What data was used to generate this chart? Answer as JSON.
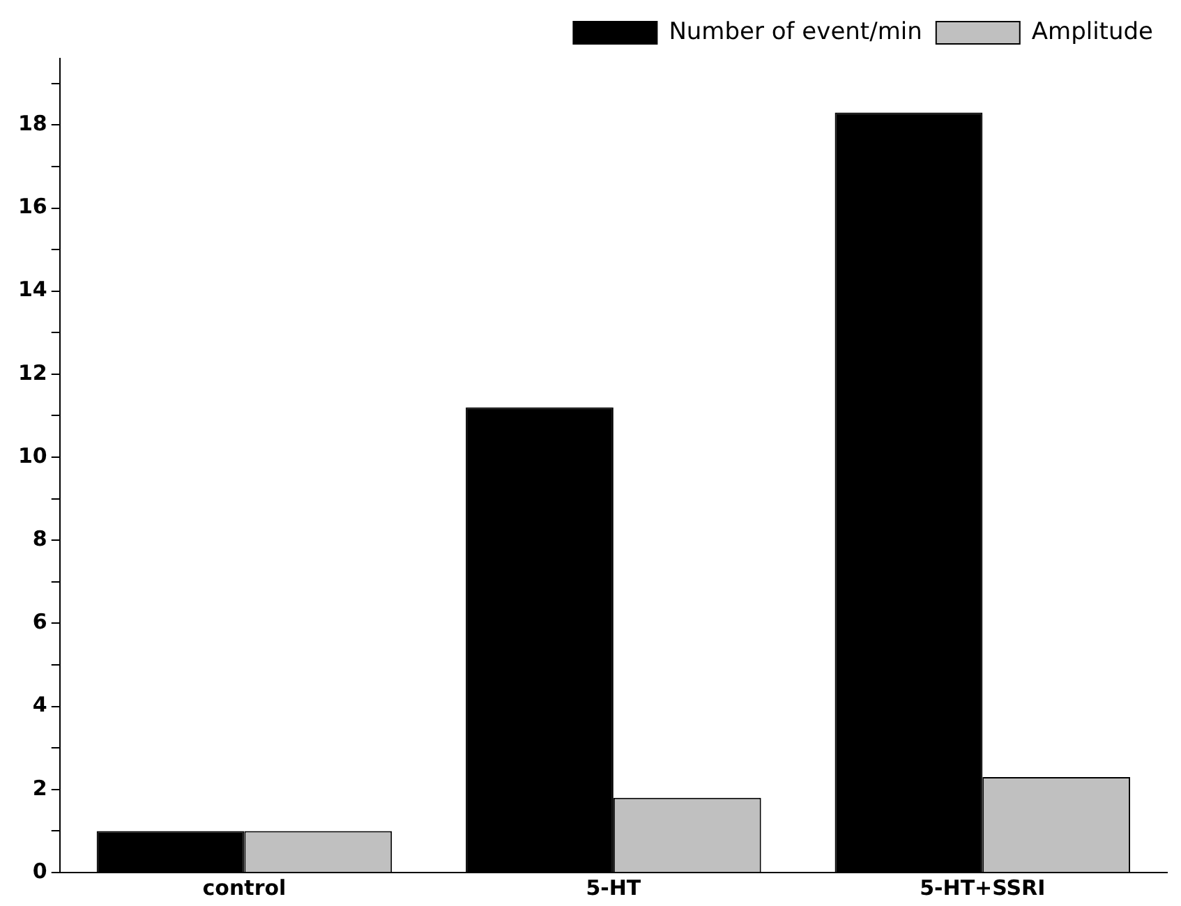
{
  "chart_data": {
    "type": "bar",
    "categories": [
      "control",
      "5-HT",
      "5-HT+SSRI"
    ],
    "series": [
      {
        "name": "Number of event/min",
        "color": "#000000",
        "values": [
          1,
          11.2,
          18.3
        ]
      },
      {
        "name": "Amplitude",
        "color": "#c0c0c0",
        "values": [
          1,
          1.8,
          2.3
        ]
      }
    ],
    "ylim": [
      0,
      19.6
    ],
    "yticks": [
      0,
      {
        "value": 1,
        "label": null
      },
      2,
      {
        "value": 3,
        "label": null
      },
      4,
      {
        "value": 5,
        "label": null
      },
      6,
      {
        "value": 7,
        "label": null
      },
      8,
      {
        "value": 9,
        "label": null
      },
      10,
      {
        "value": 11,
        "label": null
      },
      12,
      {
        "value": 13,
        "label": null
      },
      14,
      {
        "value": 15,
        "label": null
      },
      16,
      {
        "value": 17,
        "label": null
      },
      18,
      {
        "value": 19,
        "label": null
      }
    ],
    "legend": "top right"
  }
}
